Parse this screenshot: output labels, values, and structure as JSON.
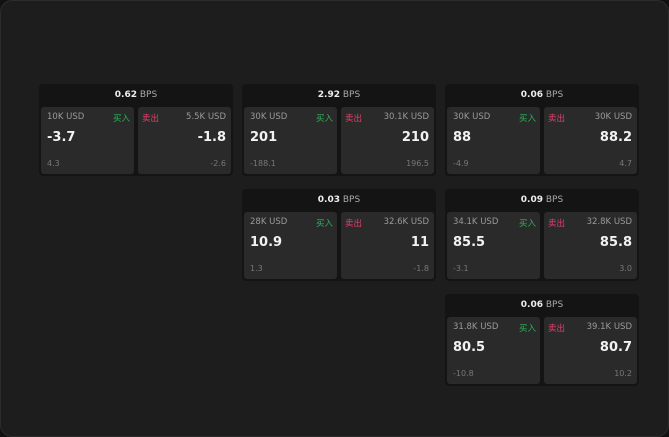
{
  "unit": "BPS",
  "buy_label": "买入",
  "sell_label": "卖出",
  "colors": {
    "buy": "#2fb25a",
    "sell": "#e0406a"
  },
  "widgets": [
    {
      "spread": "0.62",
      "buy": {
        "qty": "10K USD",
        "price": "-3.7",
        "change": "4.3"
      },
      "sell": {
        "qty": "5.5K USD",
        "price": "-1.8",
        "change": "-2.6"
      }
    },
    {
      "spread": "2.92",
      "buy": {
        "qty": "30K USD",
        "price": "201",
        "change": "-188.1"
      },
      "sell": {
        "qty": "30.1K USD",
        "price": "210",
        "change": "196.5"
      }
    },
    {
      "spread": "0.06",
      "buy": {
        "qty": "30K USD",
        "price": "88",
        "change": "-4.9"
      },
      "sell": {
        "qty": "30K USD",
        "price": "88.2",
        "change": "4.7"
      }
    },
    {
      "spread": "0.03",
      "buy": {
        "qty": "28K USD",
        "price": "10.9",
        "change": "1.3"
      },
      "sell": {
        "qty": "32.6K USD",
        "price": "11",
        "change": "-1.8"
      }
    },
    {
      "spread": "0.09",
      "buy": {
        "qty": "34.1K USD",
        "price": "85.5",
        "change": "-3.1"
      },
      "sell": {
        "qty": "32.8K USD",
        "price": "85.8",
        "change": "3.0"
      }
    },
    {
      "spread": "0.06",
      "buy": {
        "qty": "31.8K USD",
        "price": "80.5",
        "change": "-10.8"
      },
      "sell": {
        "qty": "39.1K USD",
        "price": "80.7",
        "change": "10.2"
      }
    }
  ]
}
